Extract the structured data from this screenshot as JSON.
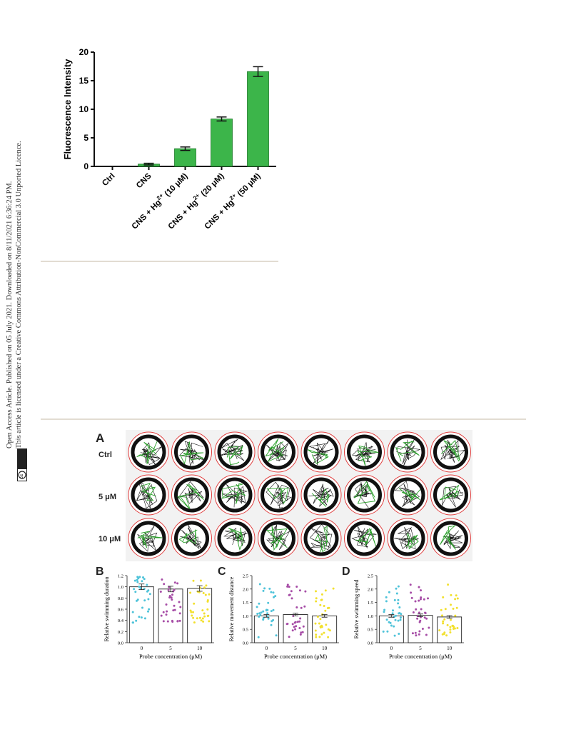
{
  "sidebar": {
    "line1": "Open Access Article. Published on 05 July 2021. Downloaded on 8/11/2021 6:36:24 PM.",
    "line2": "This article is licensed under a Creative Commons Attribution-NonCommercial 3.0 Unported Licence.",
    "badge_cc": "cc",
    "badge_tag": "BY-NC"
  },
  "colors": {
    "bar_green": "#3cb54a",
    "dot_cyan": "#4fc3d9",
    "dot_purple": "#a64ca6",
    "dot_yellow": "#f2e02e",
    "ring_red": "#e04040",
    "track_green": "#2aa02a",
    "panel_bg": "#f2f2f2"
  },
  "figure_a": {
    "panel_label": "A",
    "row_labels": [
      "Ctrl",
      "5 μM",
      "10 μM"
    ],
    "columns": 8
  },
  "chart_data": [
    {
      "type": "bar",
      "categories": [
        "Ctrl",
        "CNS",
        "CNS + Hg2+ (10 μM)",
        "CNS + Hg2+ (20 μM)",
        "CNS + Hg2+ (50 μM)"
      ],
      "values": [
        0.0,
        0.4,
        3.1,
        8.3,
        16.6
      ],
      "errors": [
        0.0,
        0.15,
        0.3,
        0.35,
        0.85
      ],
      "ylabel": "Fluorescence Intensity",
      "xlabel": "",
      "ylim": [
        0,
        20
      ],
      "yticks": [
        "0",
        "5",
        "10",
        "15",
        "20"
      ]
    },
    {
      "type": "bar",
      "panel_label": "B",
      "categories": [
        "0",
        "5",
        "10"
      ],
      "values": [
        1.0,
        0.96,
        0.97
      ],
      "ylabel": "Relative swimming duration",
      "xlabel": "Probe concentration (μM)",
      "ylim": [
        0,
        1.2
      ],
      "yticks": [
        "0.0",
        "0.2",
        "0.4",
        "0.6",
        "0.8",
        "1.0",
        "1.2"
      ]
    },
    {
      "type": "bar",
      "panel_label": "C",
      "categories": [
        "0",
        "5",
        "10"
      ],
      "values": [
        1.0,
        1.05,
        1.0
      ],
      "ylabel": "Relative movement distance",
      "xlabel": "Probe concentration (μM)",
      "ylim": [
        0,
        2.5
      ],
      "yticks": [
        "0.0",
        "0.5",
        "1.0",
        "1.5",
        "2.0",
        "2.5"
      ]
    },
    {
      "type": "bar",
      "panel_label": "D",
      "categories": [
        "0",
        "5",
        "10"
      ],
      "values": [
        1.0,
        1.02,
        0.96
      ],
      "ylabel": "Relative swimming speed",
      "xlabel": "Probe concentration (μM)",
      "ylim": [
        0,
        2.5
      ],
      "yticks": [
        "0.0",
        "0.5",
        "1.0",
        "1.5",
        "2.0",
        "2.5"
      ]
    }
  ]
}
